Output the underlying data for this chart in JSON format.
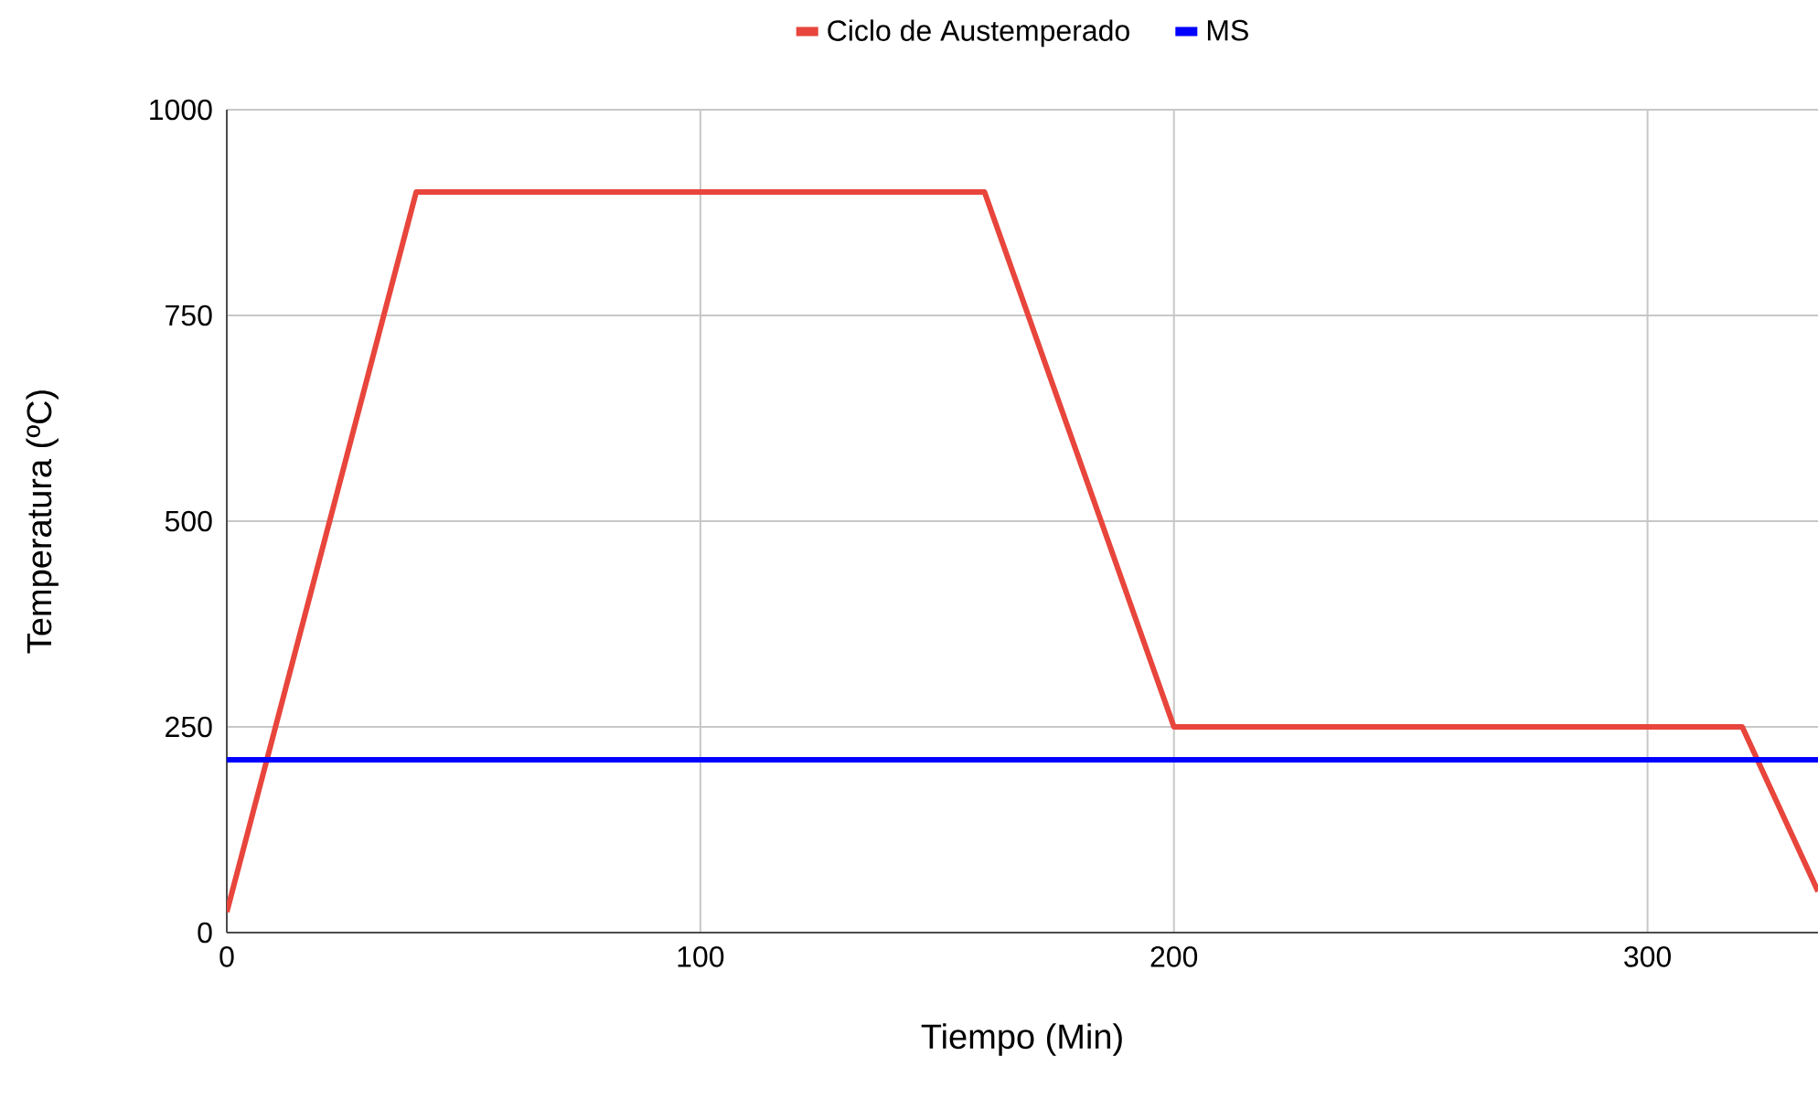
{
  "chart_data": {
    "type": "line",
    "xlabel": "Tiempo (Min)",
    "ylabel": "Temperatura (ºC)",
    "series": [
      {
        "name": "Ciclo de Austemperado",
        "color": "#e8453c",
        "x": [
          0,
          40,
          160,
          200,
          320,
          336
        ],
        "values": [
          25,
          900,
          900,
          250,
          250,
          50
        ]
      },
      {
        "name": "MS",
        "color": "#0000ff",
        "x": [
          0,
          336
        ],
        "values": [
          210,
          210
        ]
      }
    ],
    "xlim": [
      0,
      336
    ],
    "ylim": [
      0,
      1000
    ],
    "xticks": [
      0,
      100,
      200,
      300
    ],
    "yticks": [
      0,
      250,
      500,
      750,
      1000
    ],
    "grid": true,
    "legend": "top",
    "marker": "none",
    "line_style": "solid"
  }
}
